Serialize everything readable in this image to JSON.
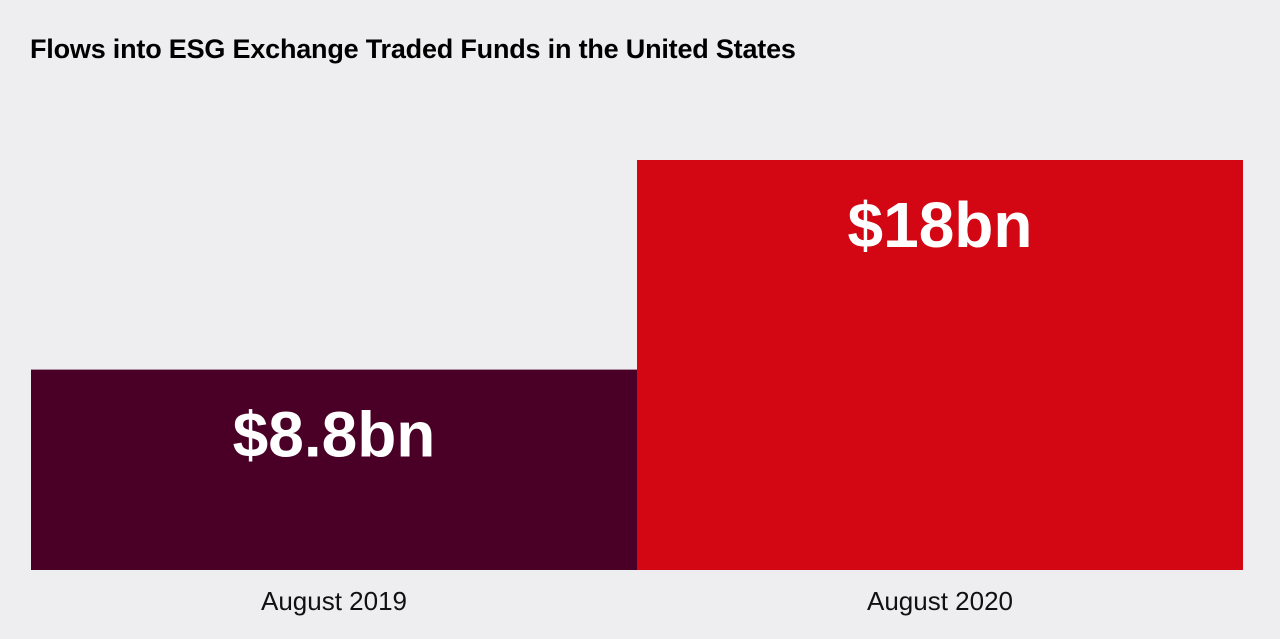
{
  "chart_data": {
    "type": "bar",
    "title": "Flows into ESG Exchange Traded Funds in the United States",
    "xlabel": "",
    "ylabel": "",
    "unit": "$bn",
    "categories": [
      "August 2019",
      "August 2020"
    ],
    "values": [
      8.8,
      18
    ],
    "data_labels": [
      "$8.8bn",
      "$18bn"
    ],
    "colors": [
      "#4a0026",
      "#d30613"
    ],
    "ylim": [
      0,
      22
    ],
    "grid": false,
    "legend": "none"
  },
  "colors": {
    "background": "#eeeef0",
    "value_label": "#ffffff",
    "category_label": "#111111"
  }
}
